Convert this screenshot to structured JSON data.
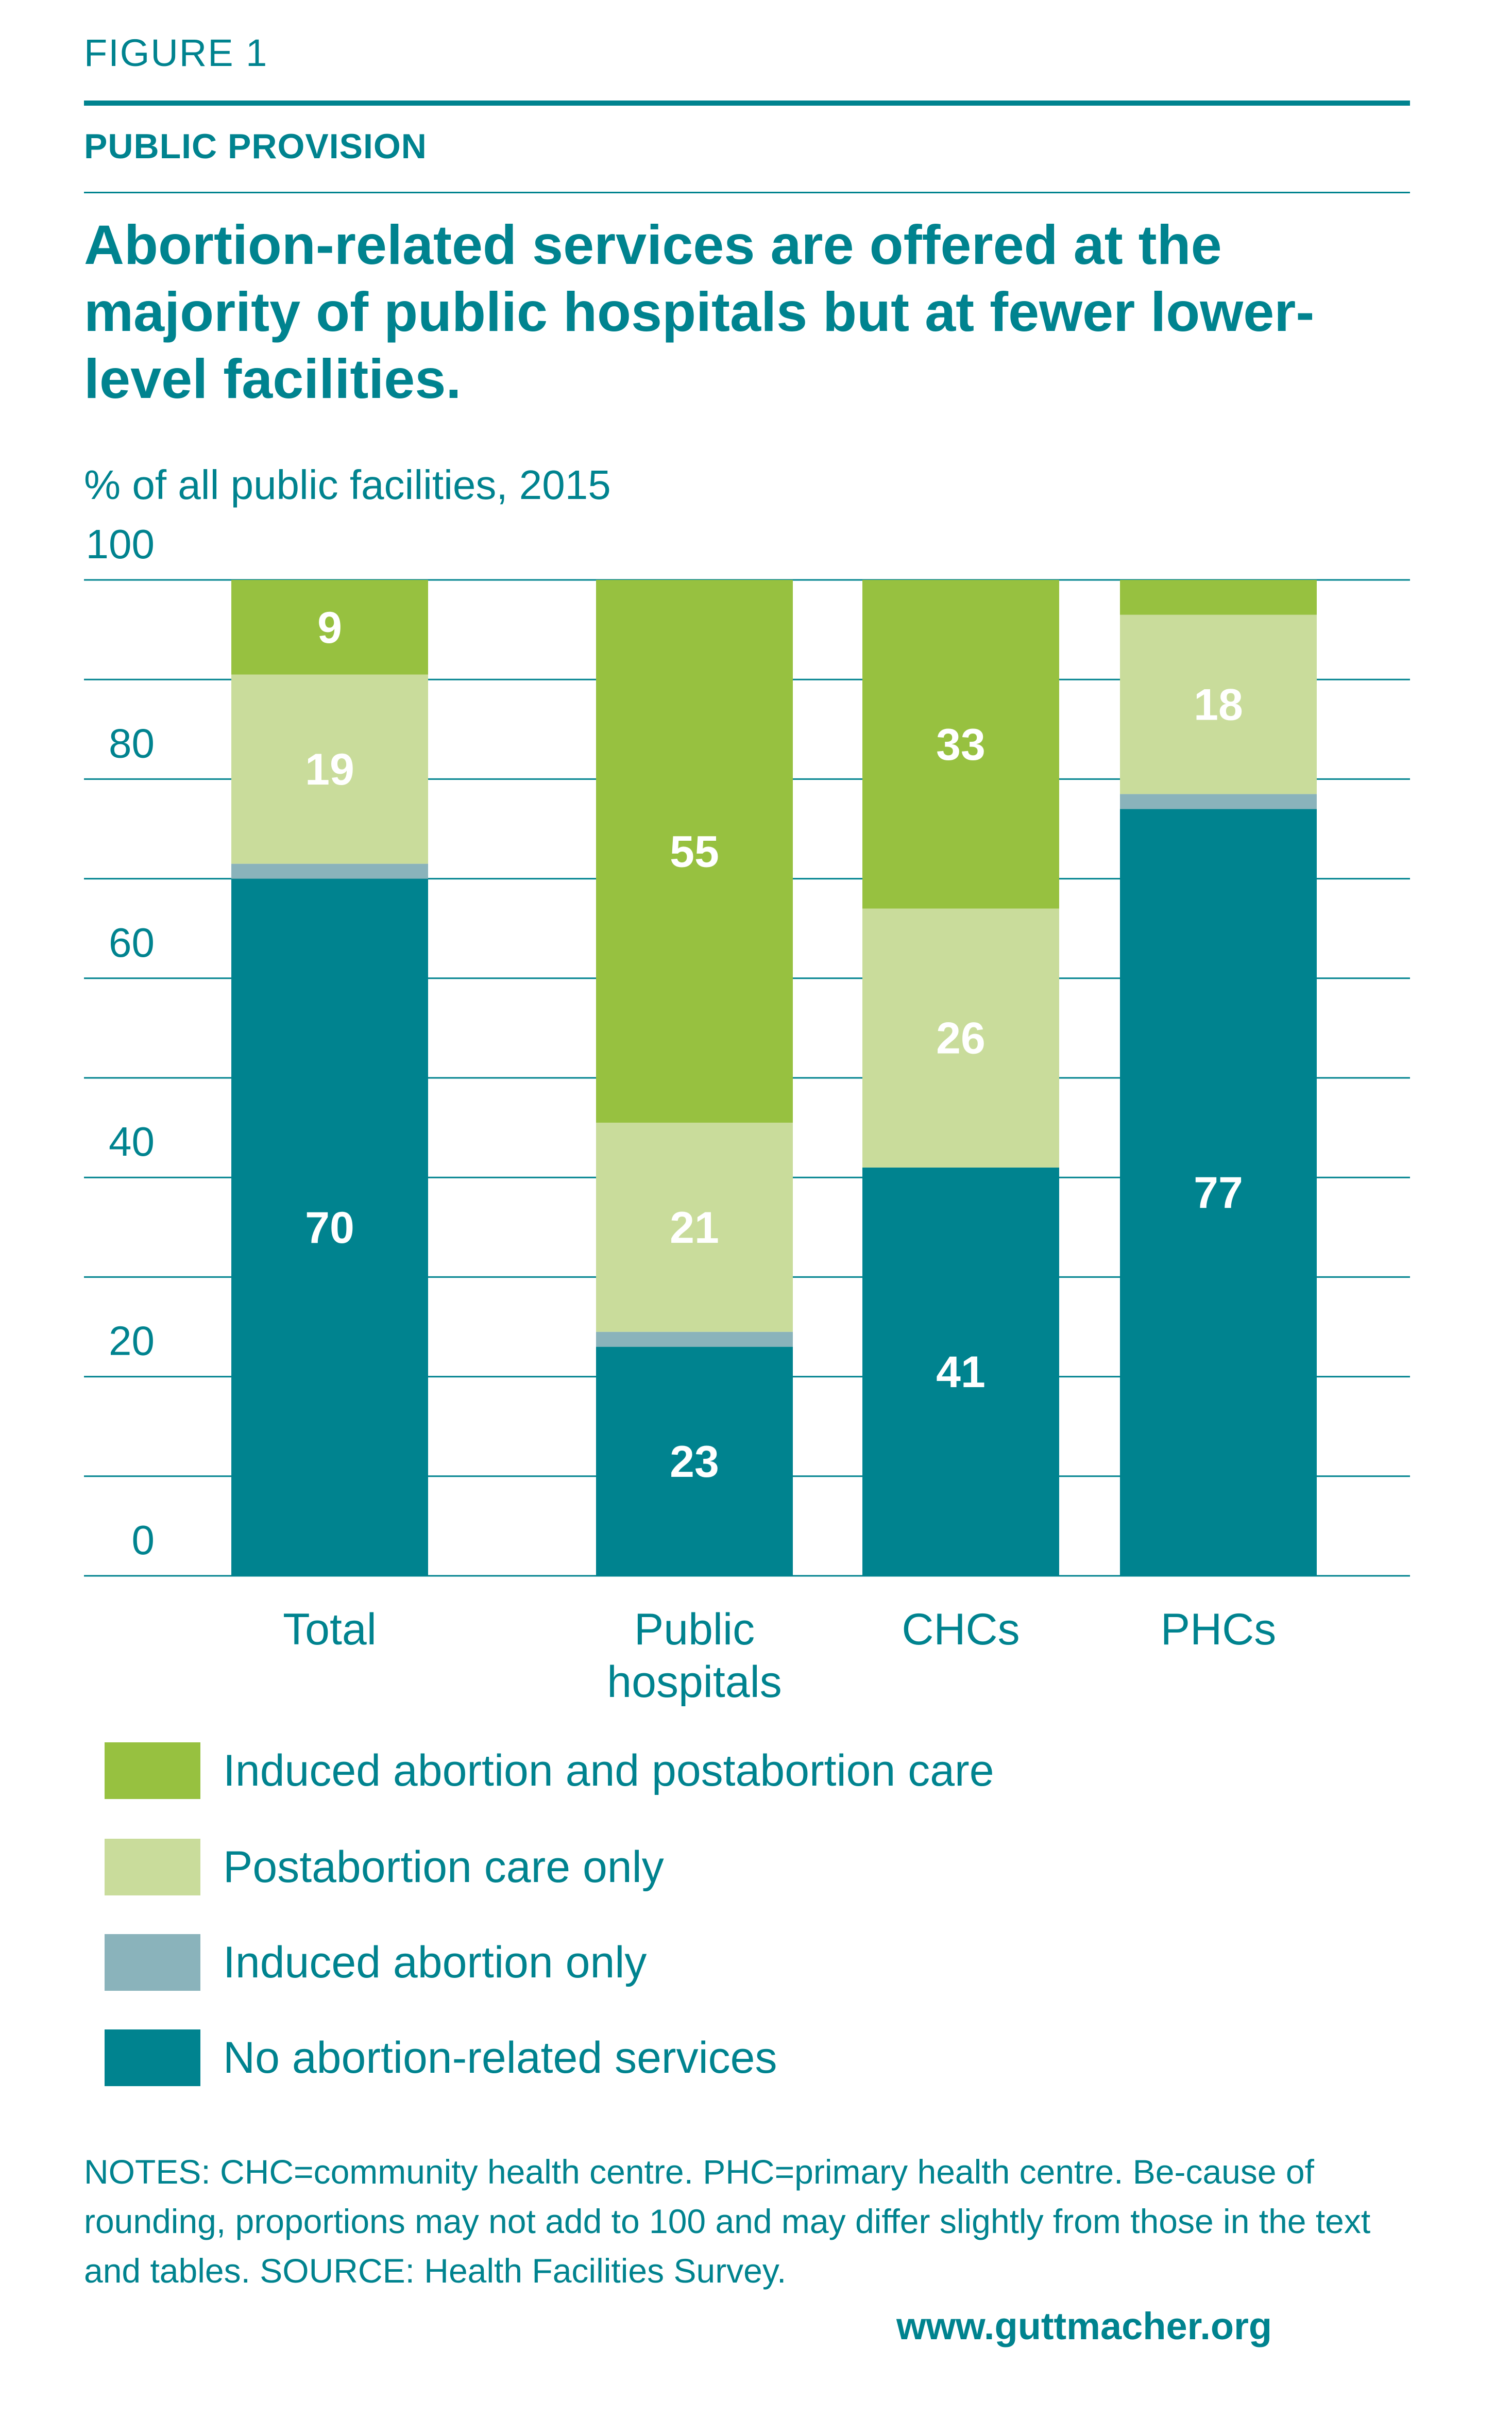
{
  "figure_label": "FIGURE 1",
  "section_label": "PUBLIC PROVISION",
  "title": "Abortion-related services are offered at the majority of public hospitals but at fewer lower-level facilities.",
  "unit_label": "% of all public facilities, 2015",
  "chart_data": {
    "type": "bar",
    "stacked": true,
    "categories": [
      "Total",
      "Public hospitals",
      "CHCs",
      "PHCs"
    ],
    "category_lines": [
      [
        "Total"
      ],
      [
        "Public",
        "hospitals"
      ],
      [
        "CHCs"
      ],
      [
        "PHCs"
      ]
    ],
    "ylim": [
      0,
      100
    ],
    "yticks": [
      0,
      20,
      40,
      60,
      80,
      100
    ],
    "gridlines": true,
    "series": [
      {
        "name": "No abortion-related services",
        "color": "#00838f",
        "values": [
          70,
          23,
          41,
          77
        ],
        "labels": [
          "70",
          "23",
          "41",
          "77"
        ]
      },
      {
        "name": "Induced abortion only",
        "color": "#8ab3bb",
        "values": [
          1.5,
          1.5,
          0,
          1.5
        ],
        "labels": [
          "",
          "",
          "",
          ""
        ]
      },
      {
        "name": "Postabortion care only",
        "color": "#c9dc9b",
        "values": [
          19,
          21,
          26,
          18
        ],
        "labels": [
          "19",
          "21",
          "26",
          "18"
        ]
      },
      {
        "name": "Induced abortion and postabortion care",
        "color": "#97c140",
        "values": [
          9.5,
          54.5,
          33,
          3.5
        ],
        "labels": [
          "9",
          "55",
          "33",
          ""
        ]
      }
    ],
    "legend_order": [
      3,
      2,
      1,
      0
    ],
    "legend_position": "bottom"
  },
  "notes": "NOTES: CHC=community health centre. PHC=primary health centre. Be-cause of rounding, proportions may not add to 100 and may differ slightly from those in the text and tables. SOURCE: Health Facilities Survey.",
  "url": "www.guttmacher.org"
}
